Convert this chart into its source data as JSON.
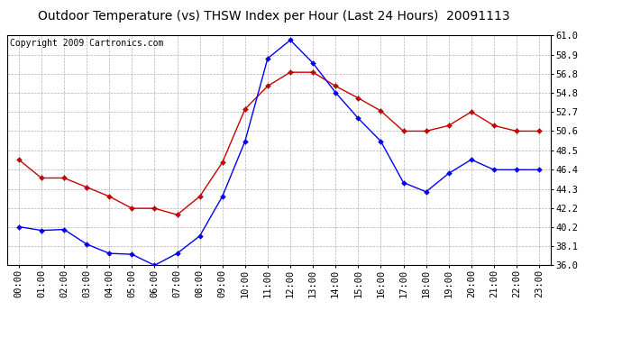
{
  "title": "Outdoor Temperature (vs) THSW Index per Hour (Last 24 Hours)  20091113",
  "copyright": "Copyright 2009 Cartronics.com",
  "hours": [
    "00:00",
    "01:00",
    "02:00",
    "03:00",
    "04:00",
    "05:00",
    "06:00",
    "07:00",
    "08:00",
    "09:00",
    "10:00",
    "11:00",
    "12:00",
    "13:00",
    "14:00",
    "15:00",
    "16:00",
    "17:00",
    "18:00",
    "19:00",
    "20:00",
    "21:00",
    "22:00",
    "23:00"
  ],
  "temp_blue": [
    40.2,
    39.8,
    39.9,
    38.3,
    37.3,
    37.2,
    36.0,
    37.3,
    39.2,
    43.5,
    49.5,
    58.5,
    60.5,
    58.0,
    54.8,
    52.0,
    49.5,
    45.0,
    44.0,
    46.0,
    47.5,
    46.4,
    46.4,
    46.4
  ],
  "thsw_red": [
    47.5,
    45.5,
    45.5,
    44.5,
    43.5,
    42.2,
    42.2,
    41.5,
    43.5,
    47.2,
    53.0,
    55.5,
    57.0,
    57.0,
    55.5,
    54.2,
    52.8,
    50.6,
    50.6,
    51.2,
    52.7,
    51.2,
    50.6,
    50.6
  ],
  "ylim": [
    36.0,
    61.0
  ],
  "yticks": [
    36.0,
    38.1,
    40.2,
    42.2,
    44.3,
    46.4,
    48.5,
    50.6,
    52.7,
    54.8,
    56.8,
    58.9,
    61.0
  ],
  "blue_color": "#0000FF",
  "red_color": "#CC0000",
  "bg_color": "#FFFFFF",
  "grid_color": "#B0B0B0",
  "title_fontsize": 10,
  "copyright_fontsize": 7,
  "tick_fontsize": 7.5
}
